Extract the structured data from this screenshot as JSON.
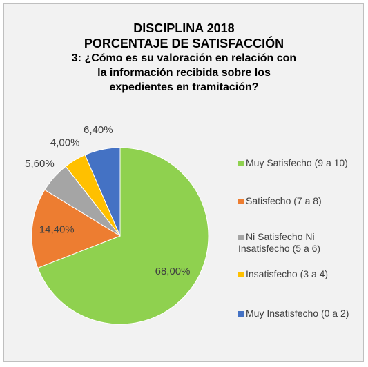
{
  "chart_data": {
    "type": "pie",
    "title": [
      "DISCIPLINA 2018",
      "PORCENTAJE DE SATISFACCIÓN",
      "3: ¿Cómo es su valoración en relación con",
      "la información recibida sobre los",
      "expedientes en tramitación?"
    ],
    "categories": [
      "Muy Satisfecho (9 a 10)",
      "Satisfecho (7 a 8)",
      "Ni Satisfecho Ni Insatisfecho (5 a 6)",
      "Insatisfecho (3 a 4)",
      "Muy Insatisfecho (0 a 2)"
    ],
    "values": [
      68,
      14.4,
      5.6,
      4,
      6.4
    ],
    "value_labels": [
      "68,00%",
      "14,40%",
      "5,60%",
      "4,00%",
      "6,40%"
    ],
    "colors": [
      "#8fd14f",
      "#ed7d31",
      "#a5a5a5",
      "#ffc000",
      "#4472c4"
    ],
    "legend": "right"
  }
}
